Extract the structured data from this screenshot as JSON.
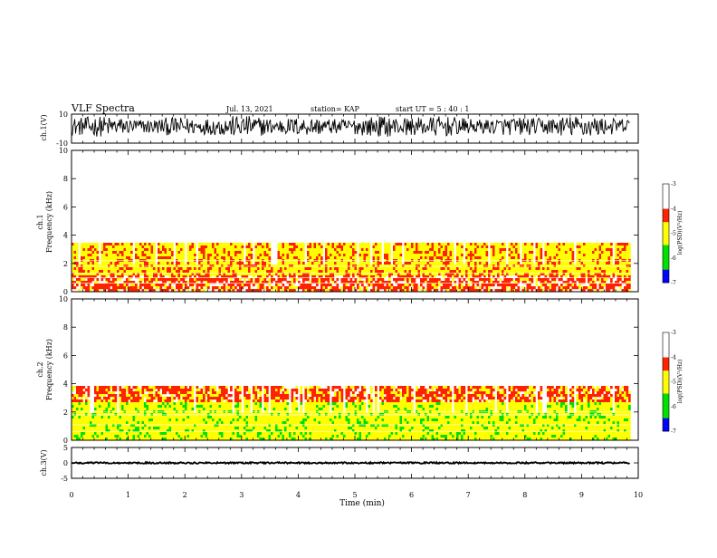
{
  "header": {
    "title": "VLF Spectra",
    "date": "Jul. 13, 2021",
    "station": "station= KAP",
    "start_ut": "start UT = 5 : 40 : 1"
  },
  "chart_data": [
    {
      "panel": "ch1-waveform",
      "type": "line",
      "ylabel": "ch.1(V)",
      "ylim": [
        -10,
        10
      ],
      "yticks": [
        "10",
        "-10"
      ],
      "xlim": [
        0,
        10
      ],
      "trace_range_min": [
        0,
        9.85
      ],
      "approx_level_V": [
        -4,
        7
      ]
    },
    {
      "panel": "ch1-spectrogram",
      "type": "heatmap",
      "ylabel": "ch.1",
      "ylabel2": "Frequency (kHz)",
      "ylim": [
        0,
        10
      ],
      "yticks": [
        "0",
        "2",
        "4",
        "6",
        "8",
        "10"
      ],
      "xlim": [
        0,
        10
      ],
      "data_extent_min": [
        0,
        9.85
      ],
      "color_scale": {
        "label": "log(PSD)(V²/Hz)",
        "range": [
          -7,
          -3
        ],
        "ticks": [
          "-3",
          "-4",
          "-5",
          "-6",
          "-7"
        ]
      },
      "bands": [
        {
          "from_kHz": 0,
          "to_kHz": 1.3,
          "level": -4.2
        },
        {
          "from_kHz": 1.3,
          "to_kHz": 3.5,
          "level": -4.7
        },
        {
          "from_kHz": 3.5,
          "to_kHz": 10,
          "level": -3.3
        }
      ]
    },
    {
      "panel": "ch2-spectrogram",
      "type": "heatmap",
      "ylabel": "ch.2",
      "ylabel2": "Frequency (kHz)",
      "ylim": [
        0,
        10
      ],
      "yticks": [
        "0",
        "2",
        "4",
        "6",
        "8",
        "10"
      ],
      "xlim": [
        0,
        10
      ],
      "data_extent_min": [
        0,
        9.85
      ],
      "color_scale": {
        "label": "log(PSD)(V²/Hz)",
        "range": [
          -7,
          -3
        ],
        "ticks": [
          "-3",
          "-4",
          "-5",
          "-6",
          "-7"
        ]
      },
      "bands": [
        {
          "from_kHz": 0,
          "to_kHz": 2.8,
          "level": -5.2
        },
        {
          "from_kHz": 2.8,
          "to_kHz": 4.0,
          "level": -4.3
        },
        {
          "from_kHz": 4.0,
          "to_kHz": 10,
          "level": -3.4
        }
      ]
    },
    {
      "panel": "ch3-waveform",
      "type": "line",
      "ylabel": "ch.3(V)",
      "ylim": [
        -5,
        5
      ],
      "yticks": [
        "5",
        "0",
        "-5"
      ],
      "xlim": [
        0,
        10
      ],
      "trace_range_min": [
        0,
        9.85
      ],
      "approx_level_V": [
        -0.2,
        0.2
      ]
    }
  ],
  "x_axis": {
    "label": "Time (min)",
    "ticks": [
      "0",
      "1",
      "2",
      "3",
      "4",
      "5",
      "6",
      "7",
      "8",
      "9",
      "10"
    ]
  },
  "colors": {
    "white": "#ffffff",
    "red": "#ff2200",
    "yellow": "#ffff00",
    "green": "#00e000",
    "blue": "#0000ff",
    "black": "#000000"
  }
}
